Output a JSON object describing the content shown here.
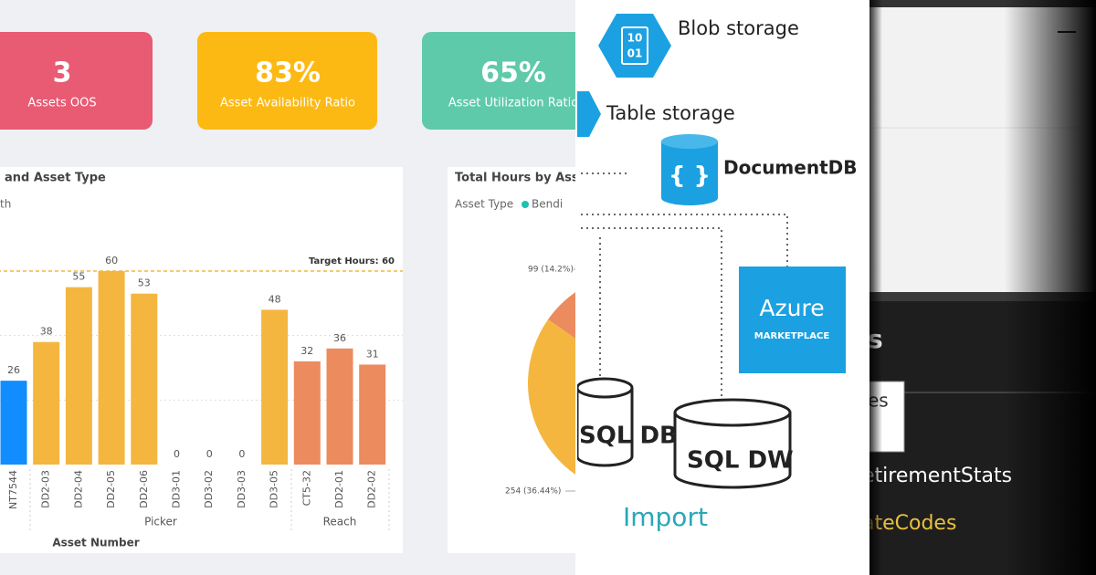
{
  "dashboard": {
    "cards": [
      {
        "value": "3",
        "label": "Assets OOS"
      },
      {
        "value": "83%",
        "label": "Asset Availability Ratio"
      },
      {
        "value": "65%",
        "label": "Asset Utilization Ratio"
      }
    ]
  },
  "chart_data": [
    {
      "type": "bar",
      "title": "and Asset Type",
      "legend_label": "th",
      "categories": [
        "NT7544",
        "DD2-03",
        "DD2-04",
        "DD2-05",
        "DD2-06",
        "DD3-01",
        "DD3-02",
        "DD3-03",
        "DD3-05",
        "CT5-32",
        "DD2-01",
        "DD2-02"
      ],
      "values": [
        26,
        38,
        55,
        60,
        53,
        0,
        0,
        0,
        48,
        32,
        36,
        31
      ],
      "colors": [
        "#118dff",
        "#f4b63f",
        "#f4b63f",
        "#f4b63f",
        "#f4b63f",
        "#f4b63f",
        "#f4b63f",
        "#f4b63f",
        "#f4b63f",
        "#ec8b5e",
        "#ec8b5e",
        "#ec8b5e"
      ],
      "groups": [
        "Picker",
        "Reach"
      ],
      "x_label": "Asset Number",
      "ylim": [
        0,
        70
      ],
      "yticks": [
        20,
        40
      ],
      "grid": true,
      "target": {
        "value": 60,
        "label": "Target Hours: 60"
      }
    },
    {
      "type": "pie",
      "title": "Total Hours by Asset",
      "legend_title": "Asset Type",
      "legend": [
        {
          "name": "Bendi",
          "color": "#1ebfb4"
        }
      ],
      "values": [
        14.2,
        36.44
      ],
      "value_labels": [
        "99 (14.2%)",
        "254 (36.44%)"
      ],
      "colors": [
        "#ec8b5e",
        "#f4b63f"
      ]
    }
  ],
  "diagram": {
    "icon_text": [
      "10",
      "01"
    ],
    "nodes": [
      {
        "label": "Blob storage"
      },
      {
        "label": "Table storage"
      },
      {
        "label": "DocumentDB"
      },
      {
        "label": "Azure",
        "sublabel": "MARKETPLACE"
      },
      {
        "label": "SQL DB"
      },
      {
        "label": "SQL DW"
      }
    ],
    "caption": "Import"
  },
  "side_panel": {
    "heading": "s",
    "tooltip": "es",
    "items": [
      "etirementStats",
      "ateCodes"
    ]
  }
}
